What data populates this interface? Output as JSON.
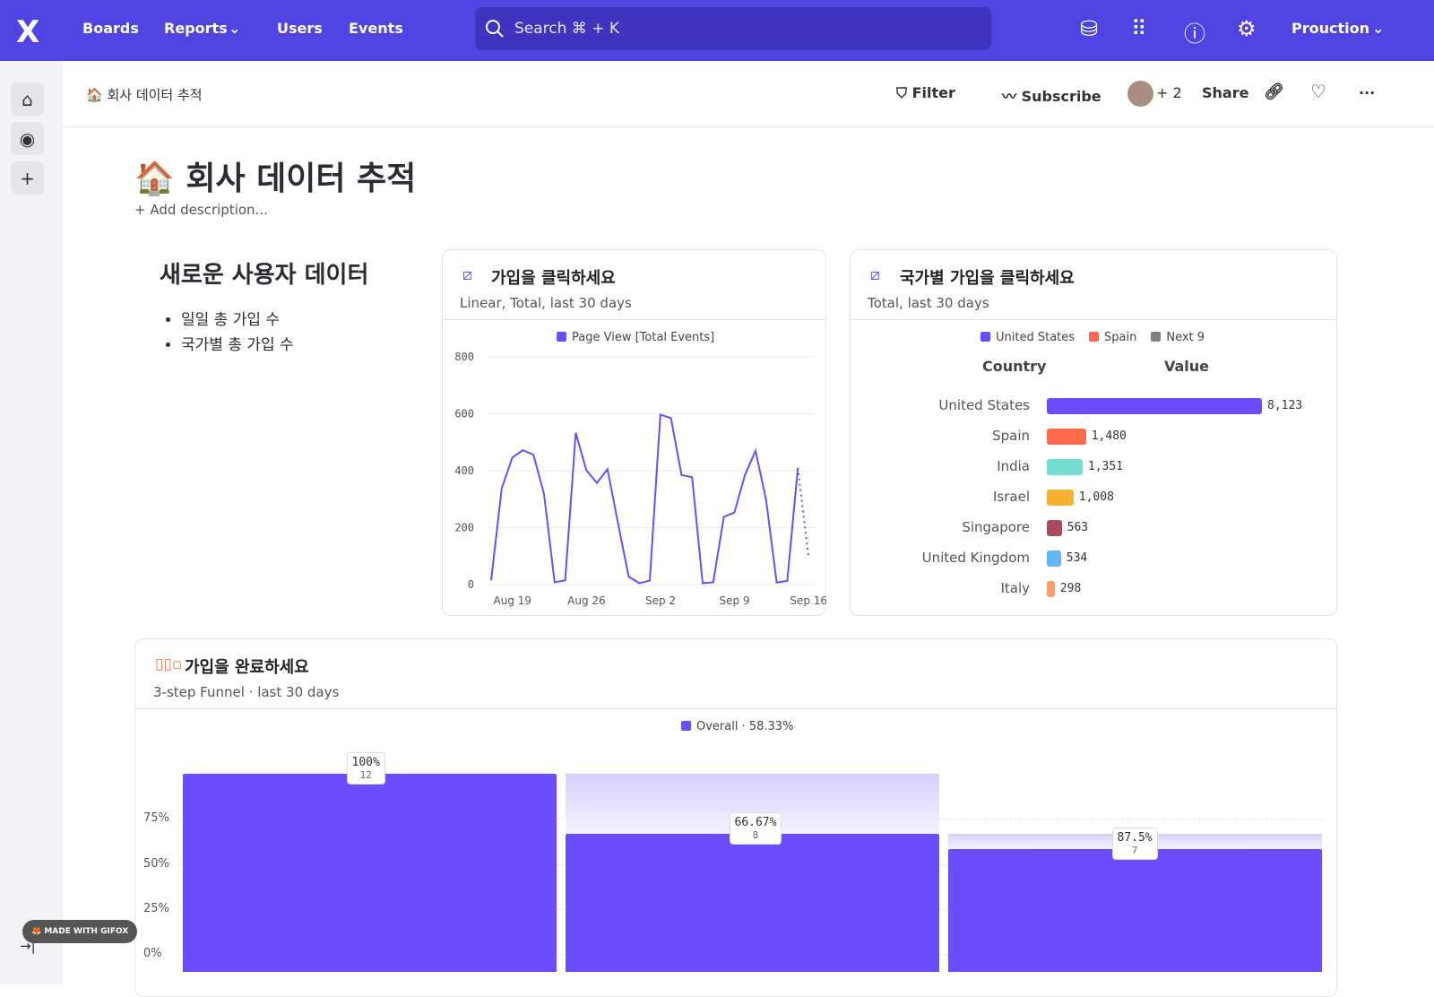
{
  "topbar": {
    "logo": "X",
    "nav": [
      {
        "label": "Boards"
      },
      {
        "label": "Reports"
      },
      {
        "label": "Users"
      },
      {
        "label": "Events"
      }
    ],
    "search_placeholder": "Search  ⌘ + K",
    "project": "Prouction",
    "icons": [
      "database-icon",
      "apps-grid-icon",
      "help-icon",
      "gear-icon"
    ],
    "color": "#4f44e0"
  },
  "sidebar": {
    "items": [
      "home-icon",
      "compass-icon",
      "plus-icon"
    ],
    "collapse": "→|"
  },
  "subheader": {
    "breadcrumb": "🏠 회사 데이터 추적",
    "filter": "Filter",
    "subscribe": "Subscribe",
    "avatars_extra": "+ 2",
    "share": "Share"
  },
  "page": {
    "title": "🏠 회사 데이터 추적",
    "add_description": "+ Add description..."
  },
  "text_card": {
    "heading": "새로운 사용자 데이터",
    "bullets": [
      "일일 총 가입 수",
      "국가별 총 가입 수"
    ]
  },
  "line_card": {
    "title": "가입을 클릭하세요",
    "subtitle": "Linear, Total, last 30 days"
  },
  "bar_card": {
    "title": "국가별 가입을 클릭하세요",
    "subtitle": "Total, last 30 days",
    "col_country": "Country",
    "col_value": "Value"
  },
  "funnel_card": {
    "title": "가입을 완료하세요",
    "subtitle": "3-step Funnel · last 30 days"
  },
  "watermark": "MADE WITH GIFOX",
  "chart_data": [
    {
      "type": "line",
      "legend": [
        {
          "name": "Page View [Total Events]",
          "color": "#6c4cff"
        }
      ],
      "ylim": [
        0,
        800
      ],
      "yticks": [
        "0",
        "200",
        "400",
        "600",
        "800"
      ],
      "xticks": [
        "Aug 19",
        "Aug 26",
        "Sep 2",
        "Sep 9",
        "Sep 16"
      ],
      "x": [
        "Aug 18",
        "Aug 19",
        "Aug 20",
        "Aug 21",
        "Aug 22",
        "Aug 23",
        "Aug 24",
        "Aug 25",
        "Aug 26",
        "Aug 27",
        "Aug 28",
        "Aug 29",
        "Aug 30",
        "Aug 31",
        "Sep 1",
        "Sep 2",
        "Sep 3",
        "Sep 4",
        "Sep 5",
        "Sep 6",
        "Sep 7",
        "Sep 8",
        "Sep 9",
        "Sep 10",
        "Sep 11",
        "Sep 12",
        "Sep 13",
        "Sep 14",
        "Sep 15",
        "Sep 16"
      ],
      "values": [
        15,
        338,
        446,
        472,
        456,
        318,
        8,
        15,
        533,
        402,
        357,
        405,
        215,
        28,
        5,
        14,
        597,
        585,
        385,
        377,
        5,
        8,
        238,
        253,
        385,
        470,
        297,
        7,
        13,
        410
      ],
      "partial": {
        "x": "Sep 17",
        "value": 100
      }
    },
    {
      "type": "bar",
      "orientation": "horizontal",
      "legend": [
        {
          "name": "United States",
          "color": "#6c4cff"
        },
        {
          "name": "Spain",
          "color": "#ff6a4a"
        },
        {
          "name": "Next 9",
          "color": "#808080"
        }
      ],
      "categories": [
        "United States",
        "Spain",
        "India",
        "Israel",
        "Singapore",
        "United Kingdom",
        "Italy"
      ],
      "values": [
        8123,
        1480,
        1351,
        1008,
        563,
        534,
        298
      ],
      "labels": [
        "8,123",
        "1,480",
        "1,351",
        "1,008",
        "563",
        "534",
        "298"
      ],
      "colors": [
        "#6c4cff",
        "#ff6a4a",
        "#74dcd2",
        "#f7b131",
        "#a84b60",
        "#64b5f6",
        "#f9a070"
      ]
    },
    {
      "type": "bar",
      "subtype": "funnel",
      "legend": [
        {
          "name": "Overall · 58.33%",
          "color": "#6c4cff"
        }
      ],
      "yticks": [
        "0%",
        "25%",
        "50%",
        "75%"
      ],
      "steps": [
        {
          "percent": 100,
          "label": "100%",
          "count": "12"
        },
        {
          "percent": 66.67,
          "label": "66.67%",
          "count": "8"
        },
        {
          "percent": 58.33,
          "label": "87.5%",
          "count": "7"
        }
      ]
    }
  ]
}
